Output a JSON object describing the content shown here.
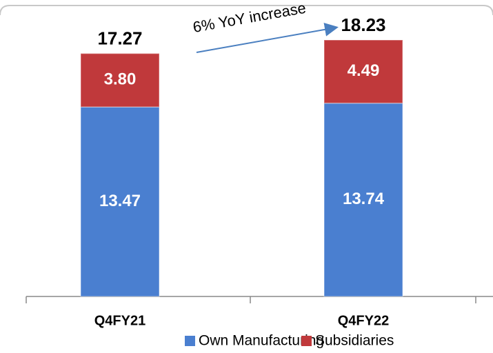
{
  "chart_data": {
    "type": "stacked-bar",
    "categories": [
      "Q4FY21",
      "Q4FY22"
    ],
    "series": [
      {
        "name": "Own Manufacturing",
        "color": "#4a7fd0",
        "values": [
          13.47,
          13.74
        ]
      },
      {
        "name": "Subsidiaries",
        "color": "#c0393b",
        "values": [
          3.8,
          4.49
        ],
        "value_labels": [
          "3.80",
          "4.49"
        ]
      }
    ],
    "totals": [
      17.27,
      18.23
    ],
    "annotation": "6% YoY increase",
    "legend": "bottom"
  }
}
